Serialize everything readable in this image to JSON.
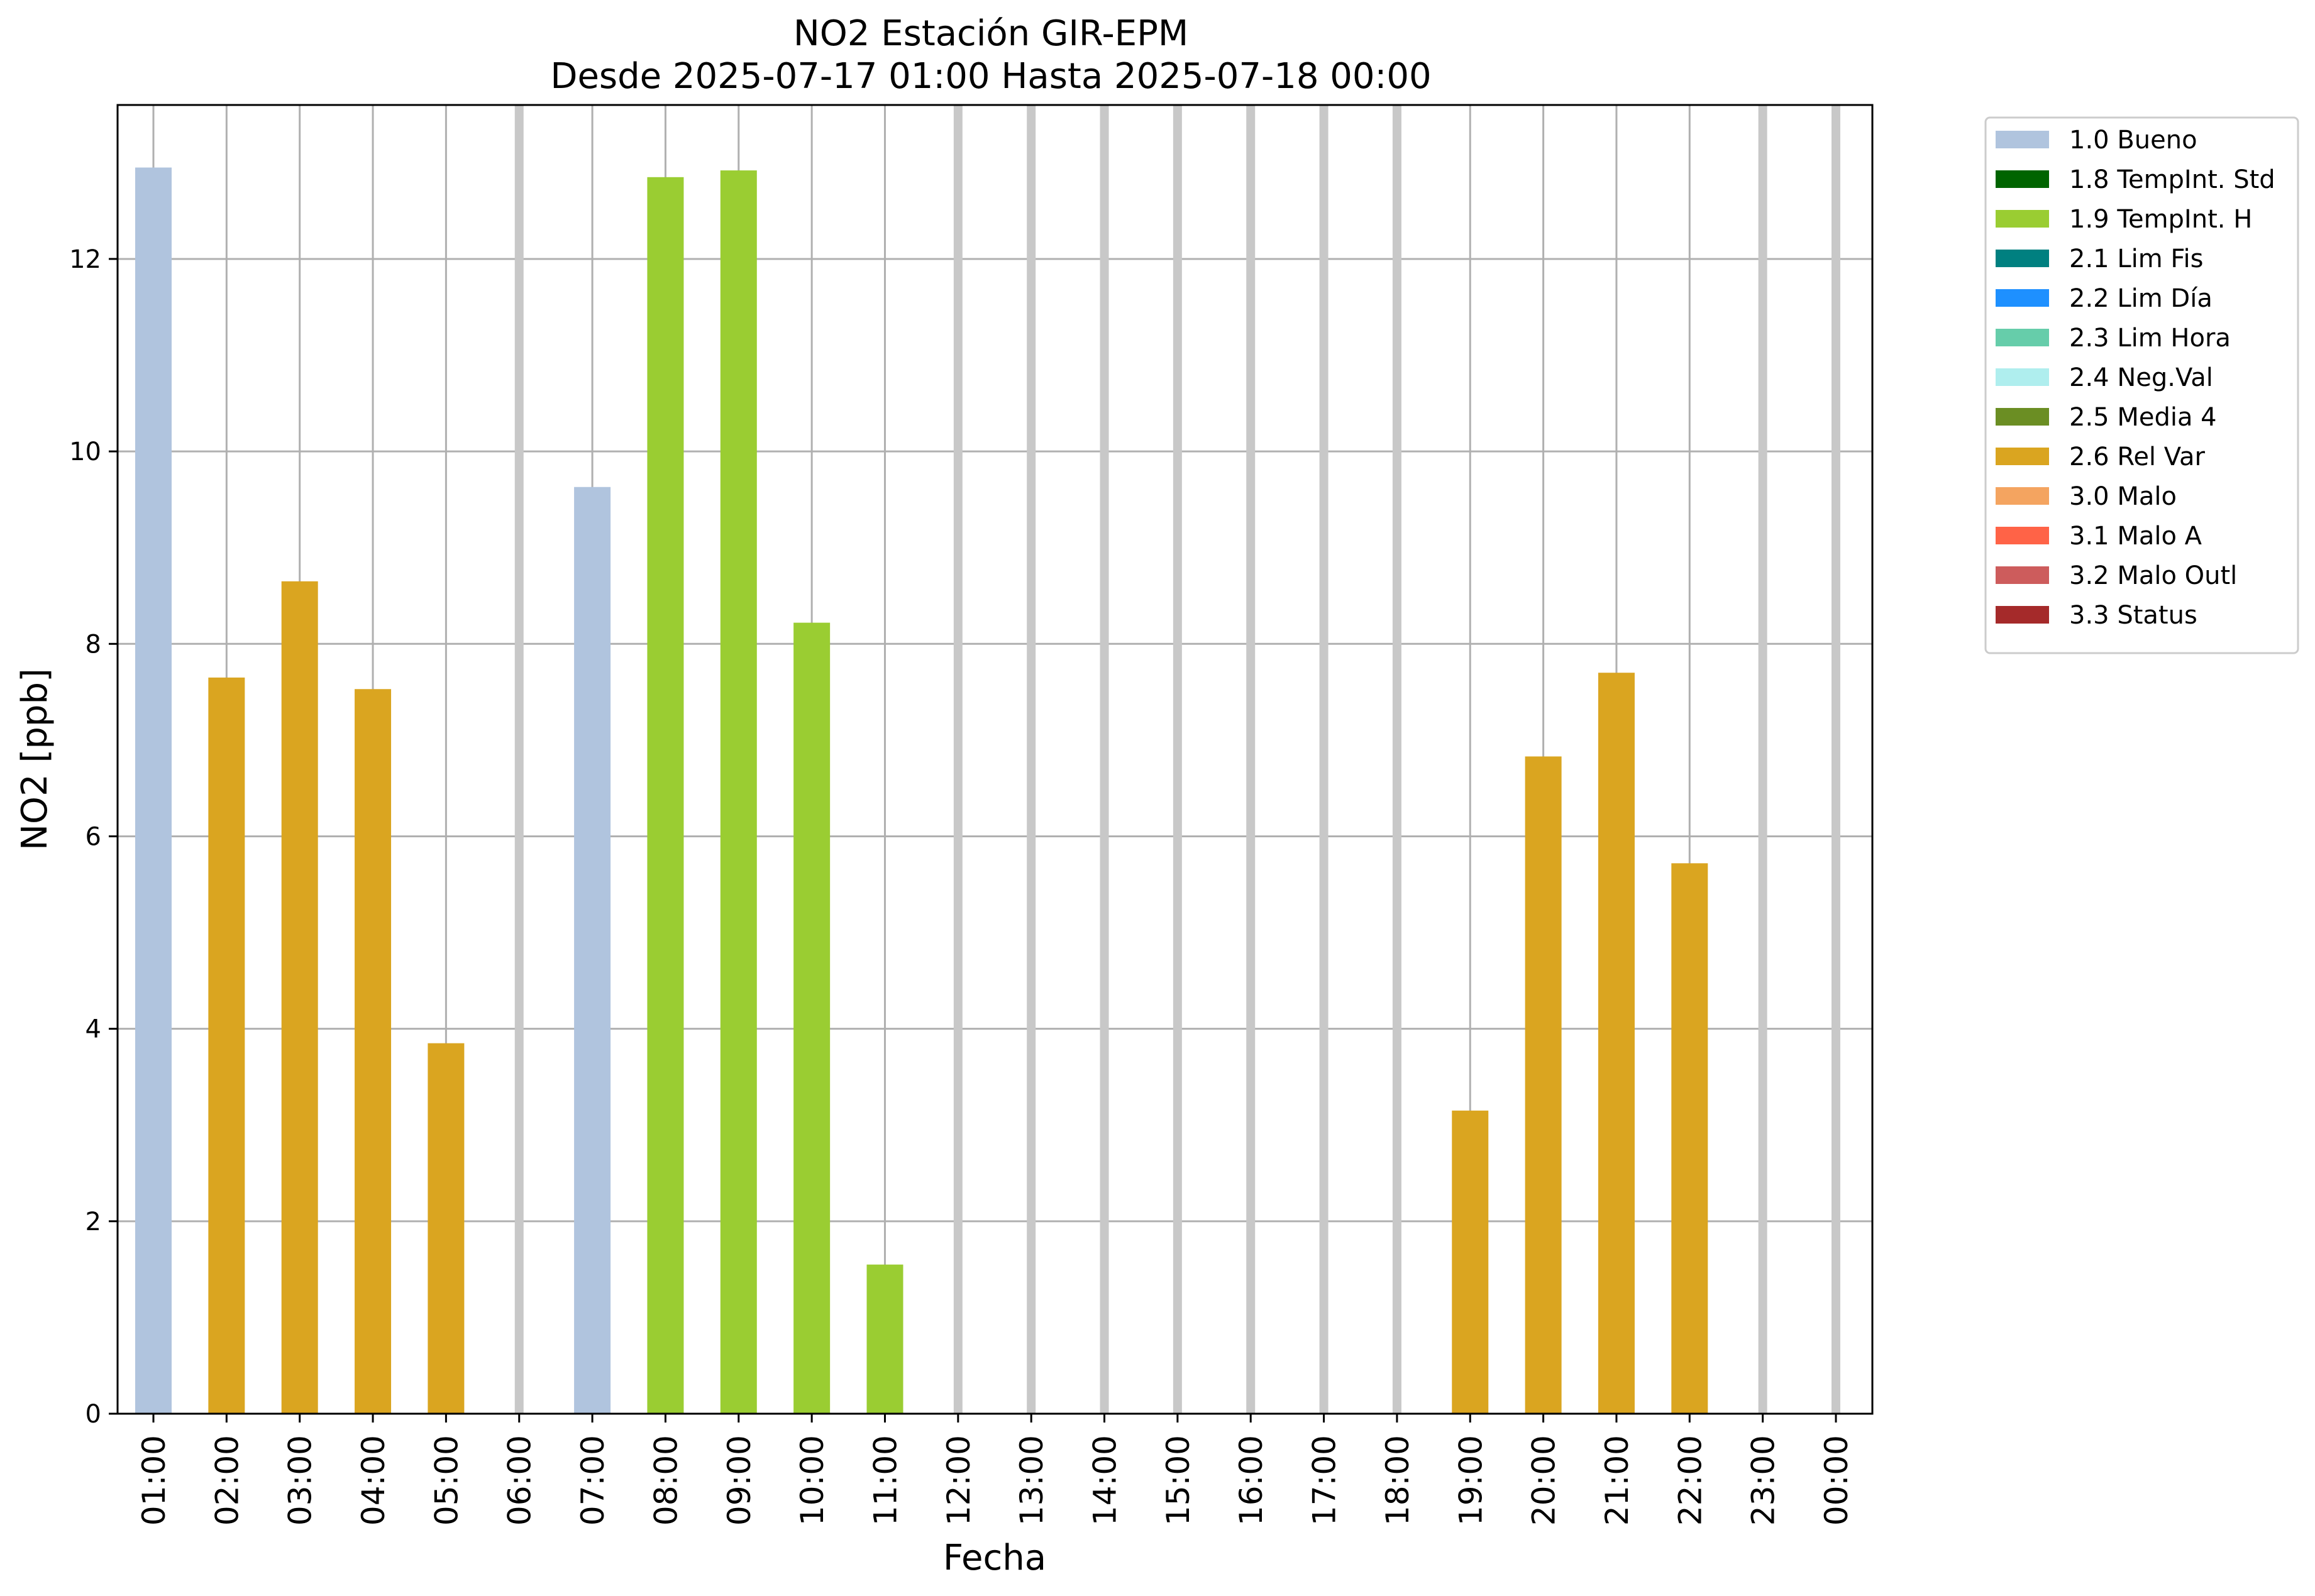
{
  "chart_data": {
    "type": "bar",
    "title": "NO2 Estación GIR-EPM",
    "subtitle": "Desde 2025-07-17 01:00 Hasta 2025-07-18 00:00",
    "xlabel": "Fecha",
    "ylabel": "NO2 [ppb]",
    "ylim": [
      0,
      13.6
    ],
    "yticks": [
      0,
      2,
      4,
      6,
      8,
      10,
      12
    ],
    "grid": true,
    "legend_position": "outside-top-right",
    "categories": [
      "01:00",
      "02:00",
      "03:00",
      "04:00",
      "05:00",
      "06:00",
      "07:00",
      "08:00",
      "09:00",
      "10:00",
      "11:00",
      "12:00",
      "13:00",
      "14:00",
      "15:00",
      "16:00",
      "17:00",
      "18:00",
      "19:00",
      "20:00",
      "21:00",
      "22:00",
      "23:00",
      "00:00"
    ],
    "values": [
      12.95,
      7.65,
      8.65,
      7.53,
      3.85,
      null,
      9.63,
      12.85,
      12.92,
      8.22,
      1.55,
      null,
      null,
      null,
      null,
      null,
      null,
      null,
      3.15,
      6.83,
      7.7,
      5.72,
      null,
      null
    ],
    "flags": [
      "1.0 Bueno",
      "2.6 Rel Var",
      "2.6 Rel Var",
      "2.6 Rel Var",
      "2.6 Rel Var",
      null,
      "1.0 Bueno",
      "1.9 TempInt. H",
      "1.9 TempInt. H",
      "1.9 TempInt. H",
      "1.9 TempInt. H",
      null,
      null,
      null,
      null,
      null,
      null,
      null,
      "2.6 Rel Var",
      "2.6 Rel Var",
      "2.6 Rel Var",
      "2.6 Rel Var",
      null,
      null
    ],
    "missing_marker_color": "#c8c8c8",
    "legend": [
      {
        "label": "1.0 Bueno",
        "color": "#b0c4de"
      },
      {
        "label": "1.8 TempInt. Std",
        "color": "#006400"
      },
      {
        "label": "1.9 TempInt. H",
        "color": "#9acd32"
      },
      {
        "label": "2.1 Lim Fis",
        "color": "#008080"
      },
      {
        "label": "2.2 Lim Día",
        "color": "#1e90ff"
      },
      {
        "label": "2.3 Lim Hora",
        "color": "#66cdaa"
      },
      {
        "label": "2.4 Neg.Val",
        "color": "#afeeee"
      },
      {
        "label": "2.5 Media 4",
        "color": "#6b8e23"
      },
      {
        "label": "2.6 Rel Var",
        "color": "#daa520"
      },
      {
        "label": "3.0 Malo",
        "color": "#f4a460"
      },
      {
        "label": "3.1 Malo A",
        "color": "#ff6347"
      },
      {
        "label": "3.2 Malo Outl",
        "color": "#cd5c5c"
      },
      {
        "label": "3.3 Status",
        "color": "#a52a2a"
      }
    ]
  }
}
